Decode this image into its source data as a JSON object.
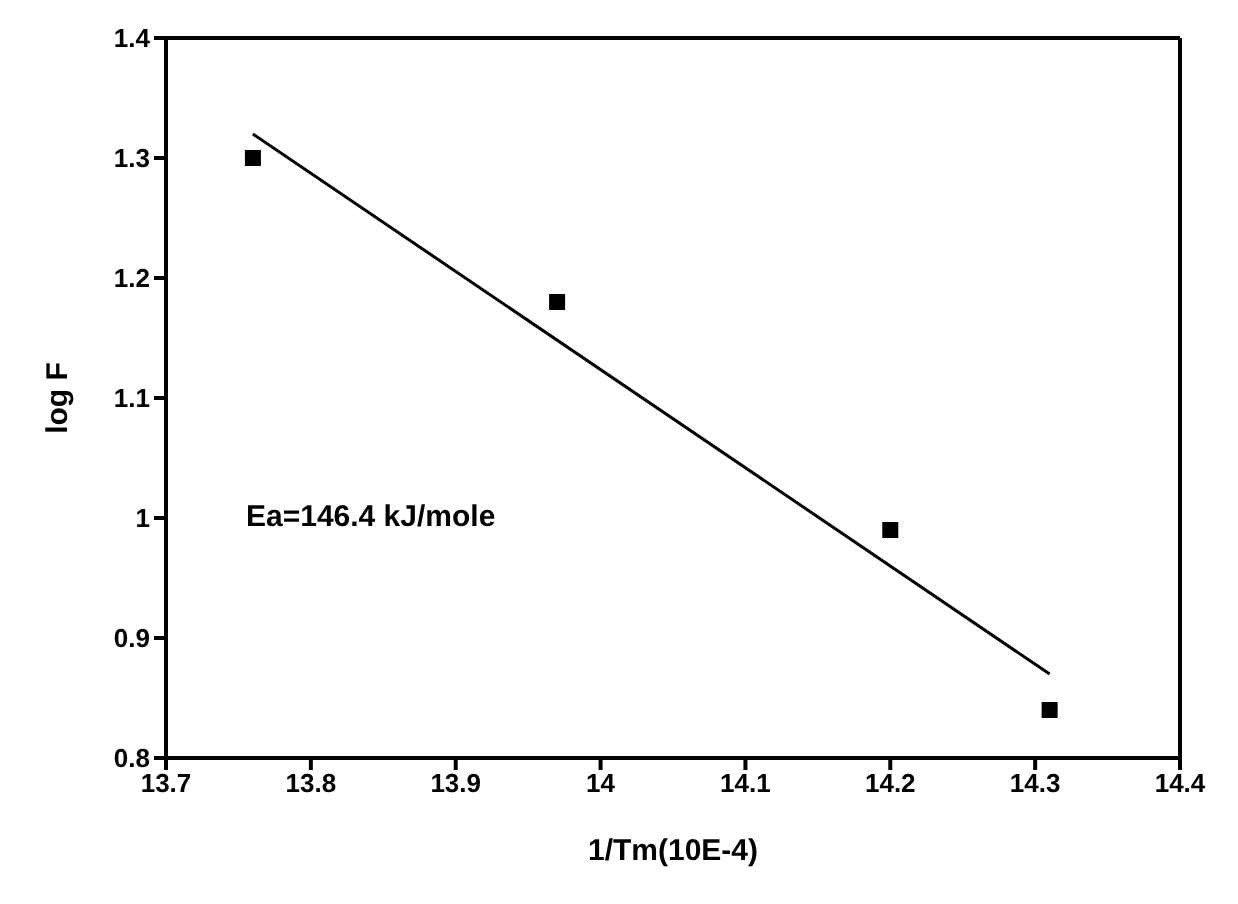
{
  "chart_data": {
    "type": "scatter",
    "xlabel": "1/Tm(10E-4)",
    "ylabel": "log F",
    "series": [
      {
        "color": "#000000",
        "x": [
          13.76,
          13.97,
          14.2,
          14.31
        ],
        "values": [
          1.3,
          1.18,
          0.99,
          0.84
        ],
        "marker": "square"
      },
      {
        "type": "line",
        "color": "#000000",
        "x": [
          13.76,
          14.31
        ],
        "values": [
          1.32,
          0.87
        ],
        "marker": "none",
        "line_style": "solid"
      }
    ],
    "xlim": [
      13.7,
      14.4
    ],
    "xticks": [
      13.7,
      13.8,
      13.9,
      14,
      14.1,
      14.2,
      14.3,
      14.4
    ],
    "ylim": [
      0.8,
      1.4
    ],
    "yticks": [
      0.8,
      0.9,
      1,
      1.1,
      1.2,
      1.3,
      1.4
    ],
    "annotations": [
      "Ea=146.4 kJ/mole"
    ],
    "legend": false
  }
}
